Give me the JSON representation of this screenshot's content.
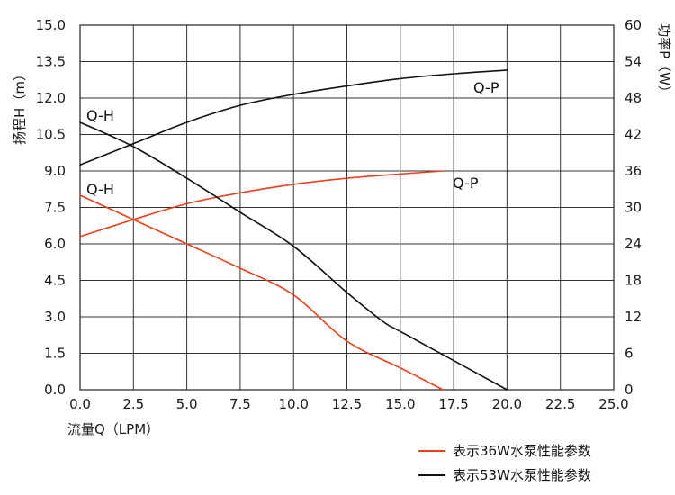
{
  "chart_data": {
    "type": "line",
    "xlabel": "流量Q（LPM）",
    "ylabel_left": "扬程H（m）",
    "ylabel_right": "功率P（W）",
    "xlim": [
      0,
      25
    ],
    "ylim_left": [
      0,
      15
    ],
    "ylim_right": [
      0,
      60
    ],
    "grid": true,
    "x_ticks": [
      "0.0",
      "2.5",
      "5.0",
      "7.5",
      "10.0",
      "12.5",
      "15.0",
      "17.5",
      "20.0",
      "22.5",
      "25.0"
    ],
    "y_ticks_left": [
      "0.0",
      "1.5",
      "3.0",
      "4.5",
      "6.0",
      "7.5",
      "9.0",
      "10.5",
      "12.0",
      "13.5",
      "15.0"
    ],
    "y_ticks_right": [
      "0",
      "6",
      "12",
      "18",
      "24",
      "30",
      "36",
      "42",
      "48",
      "54",
      "60"
    ],
    "series": [
      {
        "name": "表示36W水泵性能参数",
        "color": "#e8401c",
        "curves": [
          {
            "label": "Q-H",
            "axis": "left",
            "points": [
              [
                0,
                8.0
              ],
              [
                2.5,
                7.0
              ],
              [
                5,
                6.0
              ],
              [
                7.5,
                5.0
              ],
              [
                10,
                3.9
              ],
              [
                12.5,
                2.0
              ],
              [
                15,
                0.9
              ],
              [
                17,
                0.0
              ]
            ]
          },
          {
            "label": "Q-P",
            "axis": "right",
            "points": [
              [
                0,
                25.2
              ],
              [
                2.5,
                28.0
              ],
              [
                5,
                30.6
              ],
              [
                7.5,
                32.4
              ],
              [
                10,
                33.8
              ],
              [
                12.5,
                34.8
              ],
              [
                15,
                35.5
              ],
              [
                17,
                36.0
              ]
            ]
          }
        ]
      },
      {
        "name": "表示53W水泵性能参数",
        "color": "#111111",
        "curves": [
          {
            "label": "Q-H",
            "axis": "left",
            "points": [
              [
                0,
                11.0
              ],
              [
                2.5,
                10.0
              ],
              [
                5,
                8.7
              ],
              [
                7.5,
                7.3
              ],
              [
                10,
                5.9
              ],
              [
                12.5,
                4.0
              ],
              [
                14.2,
                2.8
              ],
              [
                15,
                2.4
              ],
              [
                17.5,
                1.2
              ],
              [
                20,
                0.0
              ]
            ]
          },
          {
            "label": "Q-P",
            "axis": "right",
            "points": [
              [
                0,
                37.0
              ],
              [
                2.5,
                40.5
              ],
              [
                5,
                44.0
              ],
              [
                7.5,
                46.8
              ],
              [
                10,
                48.6
              ],
              [
                12.5,
                50.0
              ],
              [
                15,
                51.2
              ],
              [
                17.5,
                52.0
              ],
              [
                20,
                52.6
              ]
            ]
          }
        ]
      }
    ]
  }
}
